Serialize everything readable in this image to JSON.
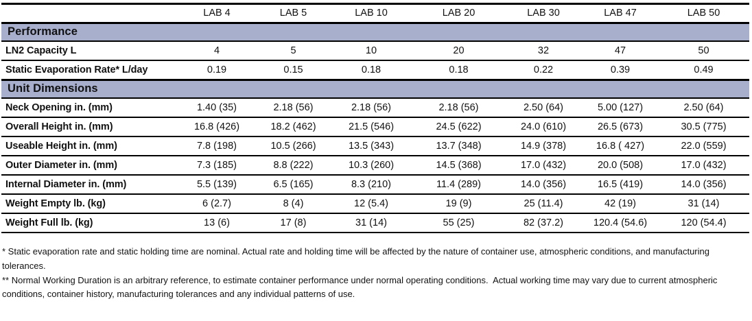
{
  "table": {
    "columns": [
      "LAB 4",
      "LAB 5",
      "LAB 10",
      "LAB 20",
      "LAB 30",
      "LAB 47",
      "LAB 50"
    ],
    "sections": [
      {
        "title": "Performance",
        "rows": [
          {
            "label": "LN2 Capacity L",
            "values": [
              "4",
              "5",
              "10",
              "20",
              "32",
              "47",
              "50"
            ]
          },
          {
            "label": "Static Evaporation Rate* L/day",
            "values": [
              "0.19",
              "0.15",
              "0.18",
              "0.18",
              "0.22",
              "0.39",
              "0.49"
            ]
          }
        ]
      },
      {
        "title": "Unit Dimensions",
        "rows": [
          {
            "label": "Neck Opening in. (mm)",
            "values": [
              "1.40 (35)",
              "2.18 (56)",
              "2.18 (56)",
              "2.18 (56)",
              "2.50 (64)",
              "5.00 (127)",
              "2.50 (64)"
            ]
          },
          {
            "label": "Overall Height in. (mm)",
            "values": [
              "16.8 (426)",
              "18.2 (462)",
              "21.5 (546)",
              "24.5 (622)",
              "24.0 (610)",
              "26.5 (673)",
              "30.5 (775)"
            ]
          },
          {
            "label": "Useable Height in. (mm)",
            "values": [
              "7.8 (198)",
              "10.5 (266)",
              "13.5 (343)",
              "13.7 (348)",
              "14.9 (378)",
              "16.8 ( 427)",
              "22.0 (559)"
            ]
          },
          {
            "label": "Outer Diameter in. (mm)",
            "values": [
              "7.3 (185)",
              "8.8 (222)",
              "10.3 (260)",
              "14.5 (368)",
              "17.0 (432)",
              "20.0 (508)",
              "17.0 (432)"
            ]
          },
          {
            "label": "Internal Diameter in. (mm)",
            "values": [
              "5.5 (139)",
              "6.5 (165)",
              "8.3 (210)",
              "11.4 (289)",
              "14.0 (356)",
              "16.5 (419)",
              "14.0 (356)"
            ]
          },
          {
            "label": "Weight Empty lb. (kg)",
            "values": [
              "6 (2.7)",
              "8 (4)",
              "12 (5.4)",
              "19 (9)",
              "25 (11.4)",
              "42 (19)",
              "31 (14)"
            ]
          },
          {
            "label": "Weight Full lb. (kg)",
            "values": [
              "13 (6)",
              "17 (8)",
              "31 (14)",
              "55 (25)",
              "82 (37.2)",
              "120.4 (54.6)",
              "120 (54.4)"
            ]
          }
        ]
      }
    ]
  },
  "footnotes": [
    "* Static evaporation rate and static holding time are nominal. Actual rate and holding time will be affected by the nature of container use, atmospheric conditions, and manufacturing tolerances.",
    "** Normal Working Duration is an arbitrary reference, to estimate container performance under normal operating conditions.  Actual working time may vary due to current atmospheric conditions, container history, manufacturing tolerances and any individual patterns of use."
  ],
  "colors": {
    "section_band": "#a7afcd",
    "rule": "#000000",
    "text": "#111111"
  }
}
